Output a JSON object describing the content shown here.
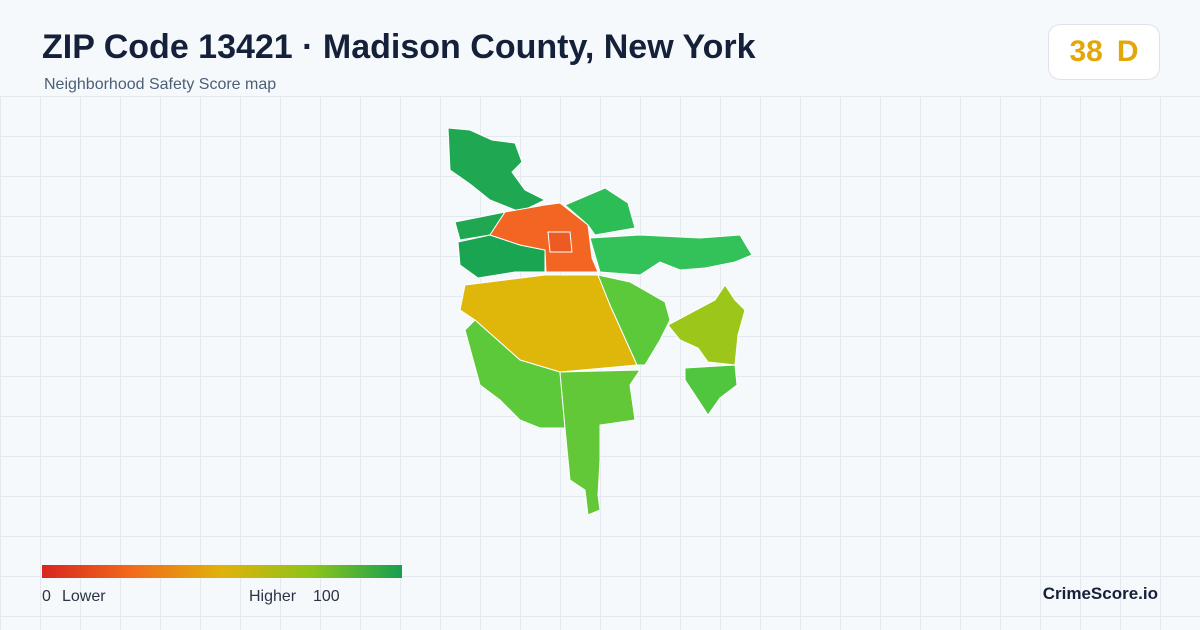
{
  "header": {
    "title": "ZIP Code 13421 · Madison County, New York",
    "subtitle": "Neighborhood Safety Score map"
  },
  "score": {
    "value": 38,
    "grade": "D"
  },
  "legend": {
    "min": 0,
    "min_label": "Lower",
    "max_label": "Higher",
    "max": 100
  },
  "footer": {
    "brand": "CrimeScore.io"
  }
}
